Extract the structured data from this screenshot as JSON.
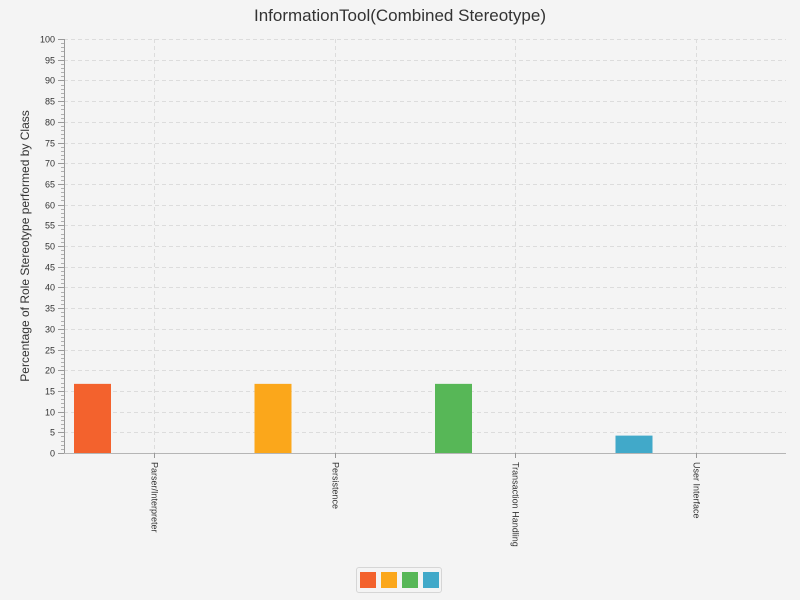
{
  "chart_data": {
    "type": "bar",
    "title": "InformationTool(Combined Stereotype)",
    "xlabel": "",
    "ylabel": "Percentage of Role Stereotype performed by Class",
    "ylim": [
      0,
      100
    ],
    "y_major_step": 5,
    "y_minor_step": 1,
    "grid": true,
    "categories": [
      "Parser/Interpreter",
      "Persistence",
      "Transaction Handling",
      "User Interface"
    ],
    "values": [
      16.7,
      16.7,
      16.7,
      4.2
    ],
    "colors": [
      "#f3622d",
      "#fba71b",
      "#57b757",
      "#41a9c9"
    ],
    "legend": {
      "position": "bottom-center",
      "entries": [
        "",
        "",
        "",
        ""
      ]
    }
  }
}
